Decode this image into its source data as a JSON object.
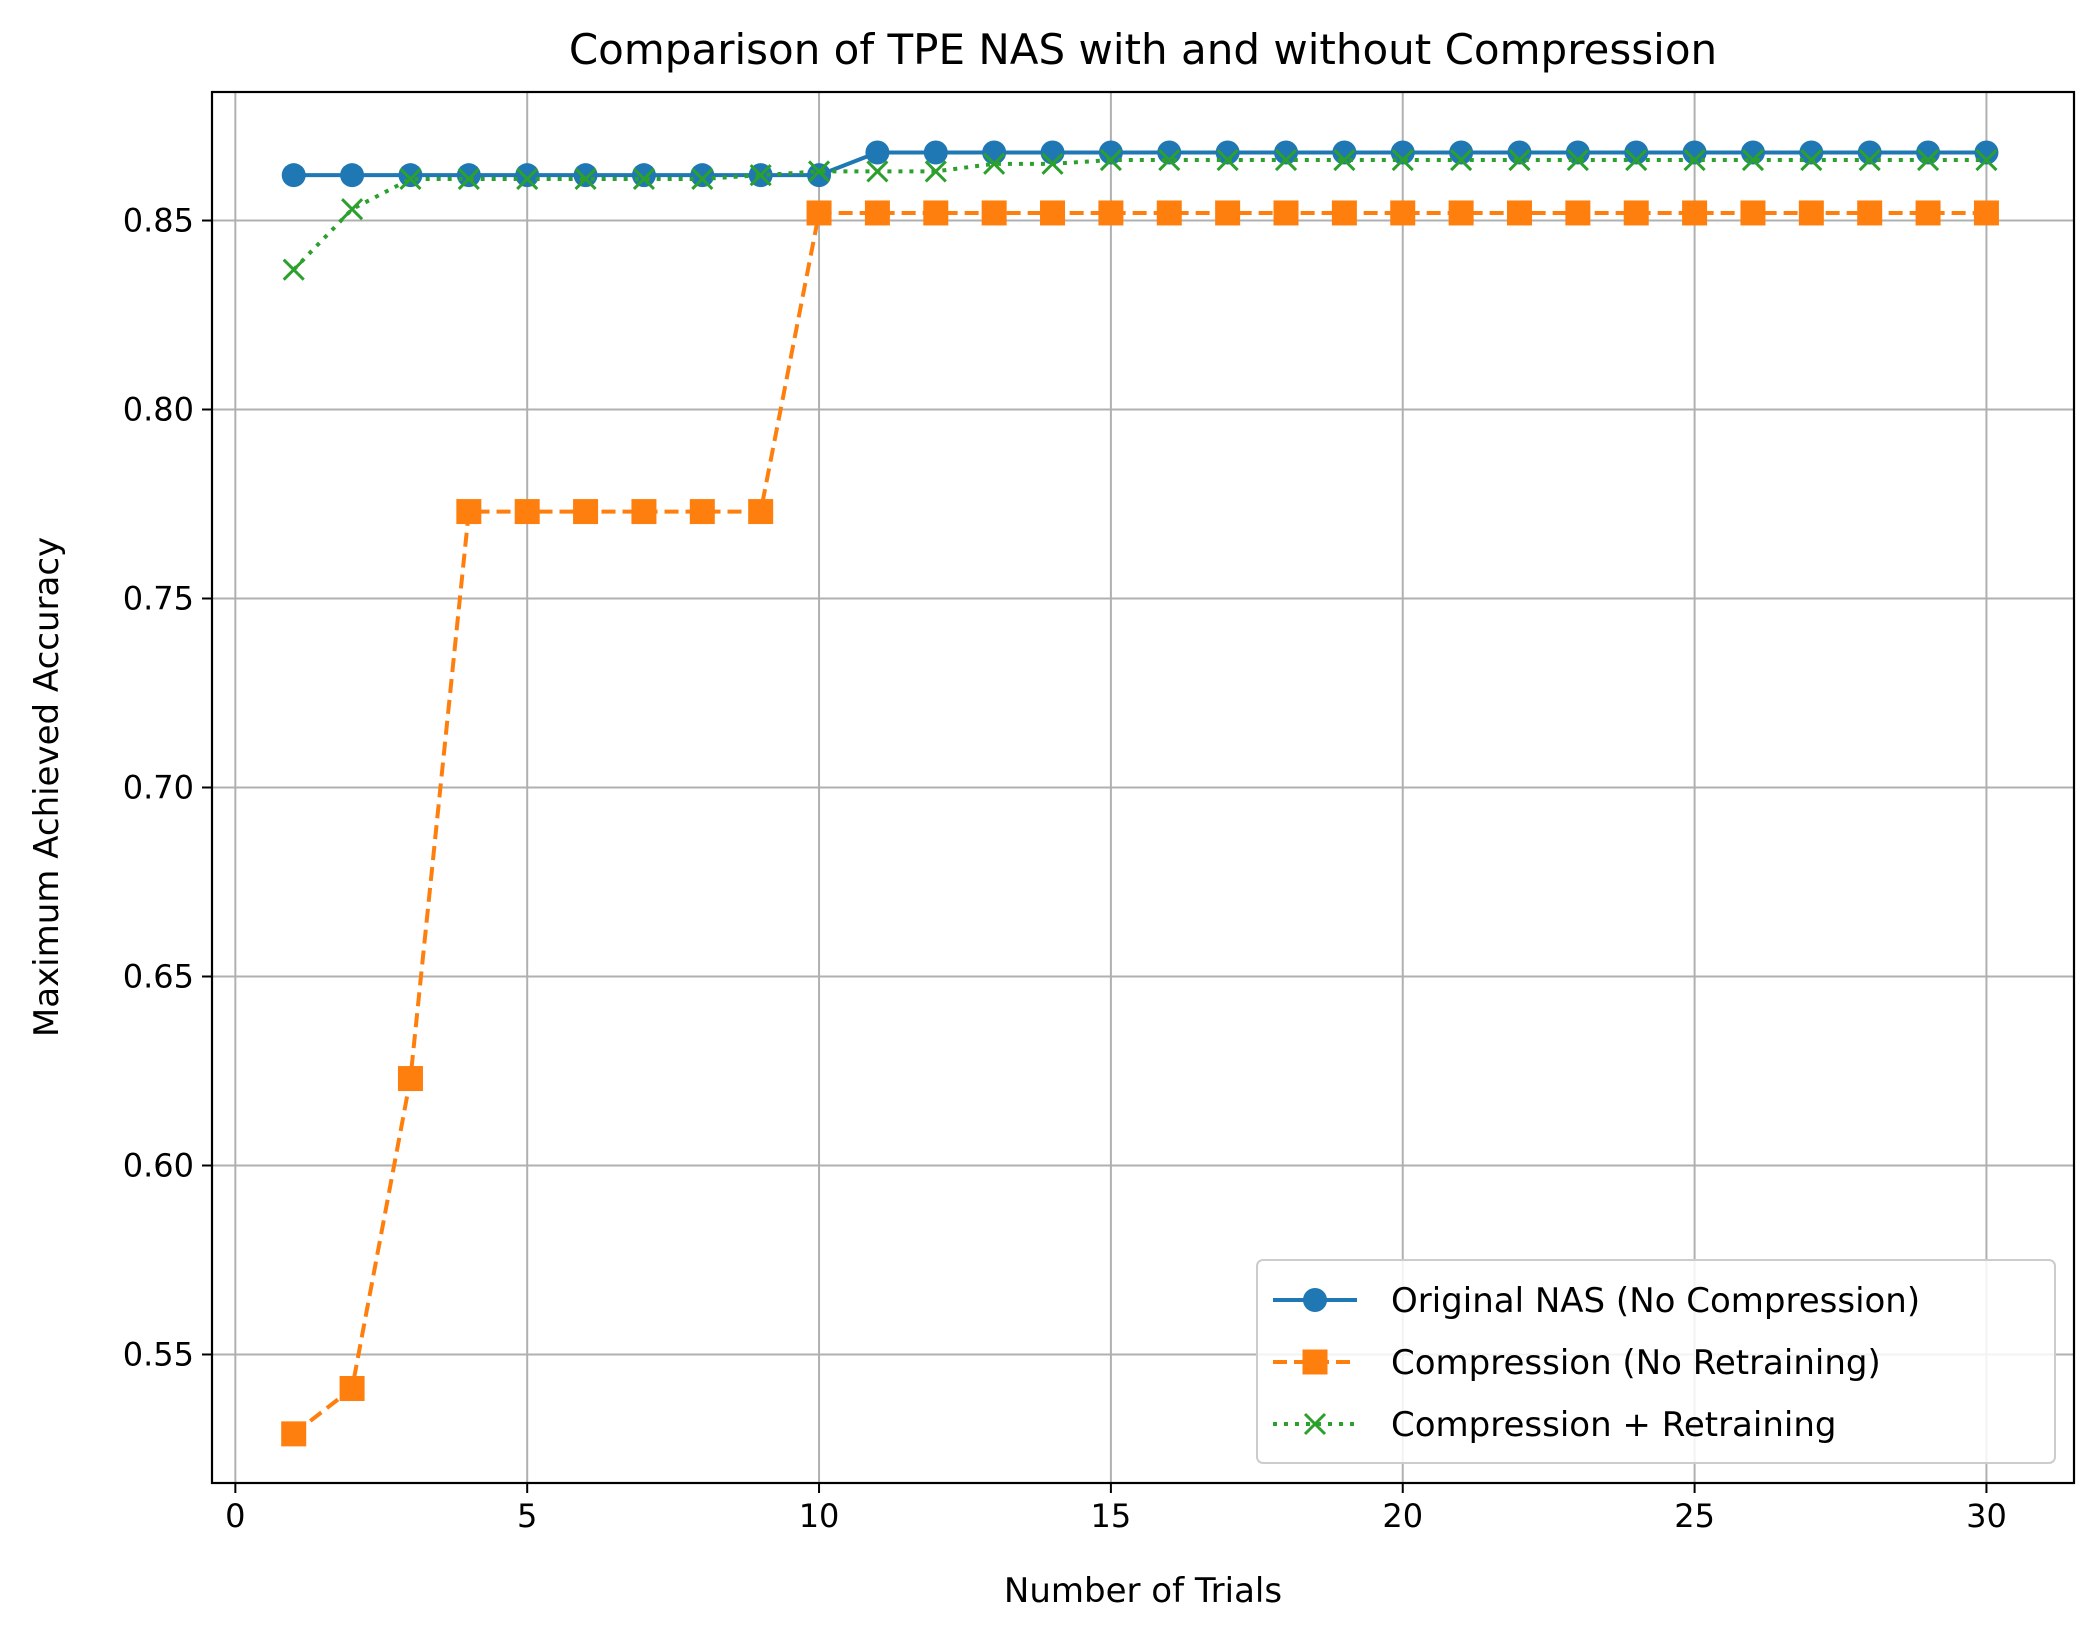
{
  "chart_data": {
    "type": "line",
    "title": "Comparison of TPE NAS with and without Compression",
    "xlabel": "Number of Trials",
    "ylabel": "Maximum Achieved Accuracy",
    "xlim": [
      -0.4,
      31.5
    ],
    "ylim": [
      0.516,
      0.884
    ],
    "xticks": [
      0,
      5,
      10,
      15,
      20,
      25,
      30
    ],
    "xtick_labels": [
      "0",
      "5",
      "10",
      "15",
      "20",
      "25",
      "30"
    ],
    "yticks": [
      0.55,
      0.6,
      0.65,
      0.7,
      0.75,
      0.8,
      0.85
    ],
    "ytick_labels": [
      "0.55",
      "0.60",
      "0.65",
      "0.70",
      "0.75",
      "0.80",
      "0.85"
    ],
    "grid": true,
    "legend_position": "lower-right",
    "x": [
      1,
      2,
      3,
      4,
      5,
      6,
      7,
      8,
      9,
      10,
      11,
      12,
      13,
      14,
      15,
      16,
      17,
      18,
      19,
      20,
      21,
      22,
      23,
      24,
      25,
      26,
      27,
      28,
      29,
      30
    ],
    "series": [
      {
        "name": "Original NAS (No Compression)",
        "color": "#1f77b4",
        "marker": "circle",
        "line_style": "solid",
        "values": [
          0.862,
          0.862,
          0.862,
          0.862,
          0.862,
          0.862,
          0.862,
          0.862,
          0.862,
          0.862,
          0.868,
          0.868,
          0.868,
          0.868,
          0.868,
          0.868,
          0.868,
          0.868,
          0.868,
          0.868,
          0.868,
          0.868,
          0.868,
          0.868,
          0.868,
          0.868,
          0.868,
          0.868,
          0.868,
          0.868
        ]
      },
      {
        "name": "Compression (No Retraining)",
        "color": "#ff7f0e",
        "marker": "square",
        "line_style": "dashed",
        "values": [
          0.529,
          0.541,
          0.623,
          0.773,
          0.773,
          0.773,
          0.773,
          0.773,
          0.773,
          0.852,
          0.852,
          0.852,
          0.852,
          0.852,
          0.852,
          0.852,
          0.852,
          0.852,
          0.852,
          0.852,
          0.852,
          0.852,
          0.852,
          0.852,
          0.852,
          0.852,
          0.852,
          0.852,
          0.852,
          0.852
        ]
      },
      {
        "name": "Compression + Retraining",
        "color": "#2ca02c",
        "marker": "x",
        "line_style": "dotted",
        "values": [
          0.837,
          0.853,
          0.861,
          0.861,
          0.861,
          0.861,
          0.861,
          0.861,
          0.862,
          0.863,
          0.863,
          0.863,
          0.865,
          0.865,
          0.866,
          0.866,
          0.866,
          0.866,
          0.866,
          0.866,
          0.866,
          0.866,
          0.866,
          0.866,
          0.866,
          0.866,
          0.866,
          0.866,
          0.866,
          0.866
        ]
      }
    ]
  }
}
